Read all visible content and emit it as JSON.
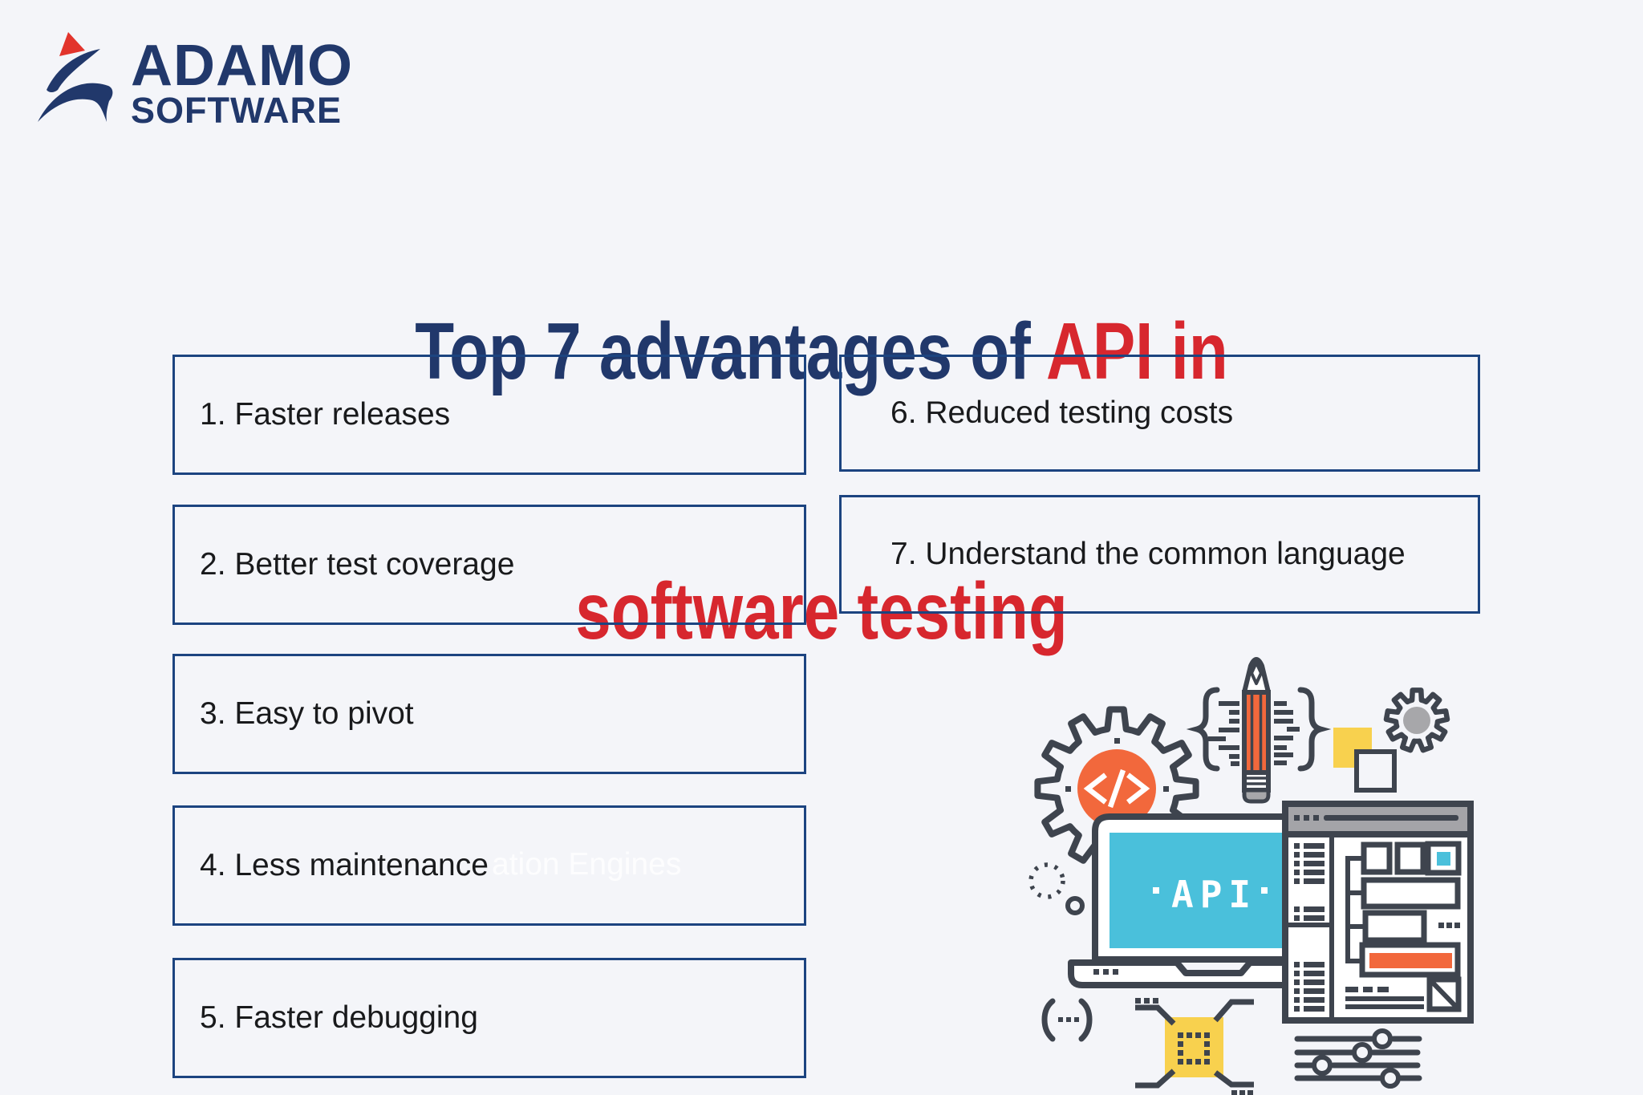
{
  "logo": {
    "name": "ADAMO",
    "sub": "SOFTWARE"
  },
  "title": {
    "line1_navy": "Top 7 advantages of ",
    "line1_red": "API in",
    "line2_red": "software testing"
  },
  "advantages_left": [
    {
      "label": "1. Faster releases"
    },
    {
      "label": "2. Better test coverage"
    },
    {
      "label": "3. Easy to pivot"
    },
    {
      "label": "4. Less maintenance"
    },
    {
      "label": "5. Faster debugging"
    }
  ],
  "advantages_right": [
    {
      "label": "6. Reduced testing costs"
    },
    {
      "label": "7. Understand the common language"
    }
  ],
  "watermark": {
    "text": "ation Engines"
  },
  "illustration": {
    "screen_label": "API"
  },
  "colors": {
    "background": "#f4f5f9",
    "navy": "#21386b",
    "red": "#d7272e",
    "box_border": "#1c4480",
    "outline_dark": "#3e444e",
    "orange": "#f2683c",
    "teal": "#4ac0db",
    "yellow": "#f8d14e",
    "gray": "#a7a7aa"
  }
}
